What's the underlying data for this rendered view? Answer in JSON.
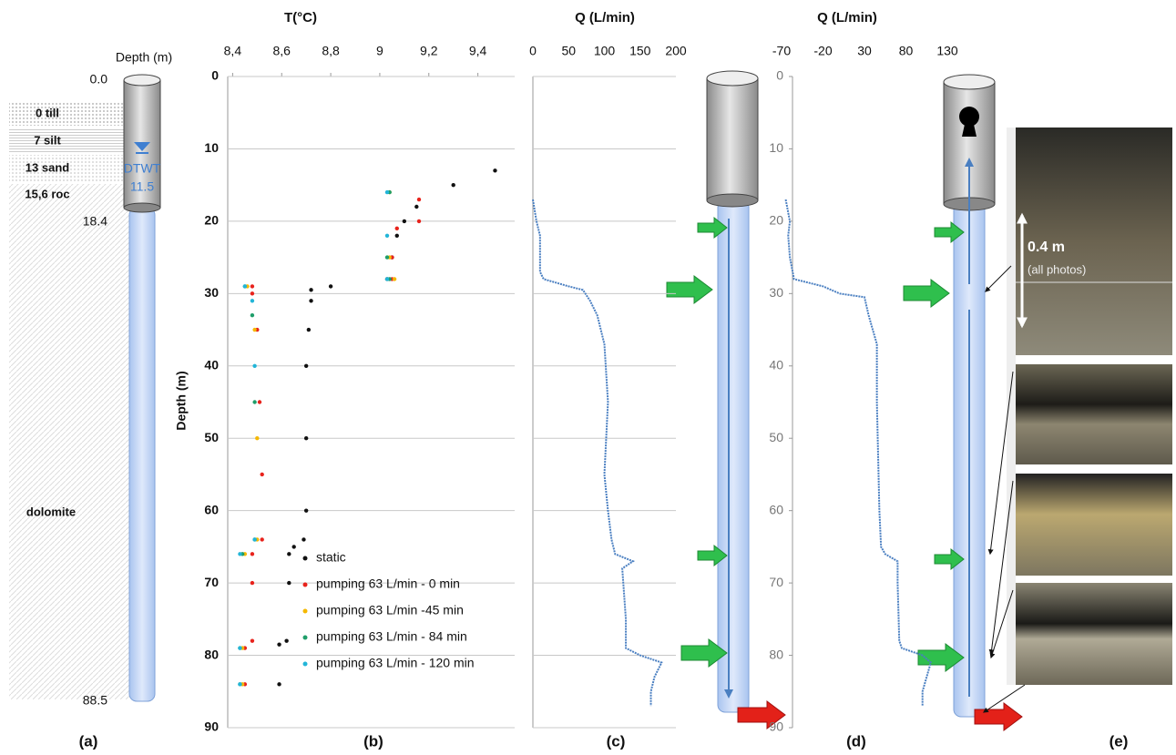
{
  "borehole": {
    "depth_label": "Depth (m)",
    "top_depth": "0.0",
    "casing_depth": "18.4",
    "bottom_depth": "88.5",
    "layers": [
      "0 till",
      "7 silt",
      "13 sand",
      "15,6 roc",
      "dolomite"
    ],
    "water_label": "DTWT",
    "water_depth": "11.5"
  },
  "photos": {
    "scale": "0.4 m",
    "note": "(all photos)"
  },
  "panel_labels": [
    "(a)",
    "(b)",
    "(c)",
    "(d)",
    "(e)"
  ],
  "chart_data": [
    {
      "type": "scatter",
      "title": "T(°C)",
      "y_label": "Depth (m)",
      "xlim": [
        8.38,
        9.55
      ],
      "xticks": [
        {
          "value": 8.4,
          "label": "8,4"
        },
        {
          "value": 8.6,
          "label": "8,6"
        },
        {
          "value": 8.8,
          "label": "8,8"
        },
        9,
        {
          "value": 9.2,
          "label": "9,2"
        },
        {
          "value": 9.4,
          "label": "9,4"
        }
      ],
      "ylim": [
        0,
        90
      ],
      "yticks": [
        0,
        10,
        20,
        30,
        40,
        50,
        60,
        70,
        80,
        90
      ],
      "y_reversed": true,
      "grid": true,
      "legend": "lower right",
      "series": [
        {
          "name": "static",
          "color": "#111111",
          "x": [
            9.47,
            9.3,
            9.15,
            9.1,
            9.07,
            9.05,
            9.03,
            8.8,
            8.72,
            8.72,
            8.71,
            8.7,
            8.7,
            8.7,
            8.69,
            8.65,
            8.63,
            8.63,
            8.62,
            8.59,
            8.59
          ],
          "values": [
            13,
            15,
            18,
            20,
            22,
            25,
            28,
            29,
            29.5,
            31,
            35,
            40,
            50,
            60,
            64,
            65,
            66,
            70,
            78,
            78.5,
            84
          ]
        },
        {
          "name": "pumping 63 L/min - 0 min",
          "color": "#e8231c",
          "x": [
            9.16,
            9.16,
            9.07,
            9.05,
            9.05,
            8.48,
            8.48,
            8.5,
            8.51,
            8.52,
            8.52,
            8.48,
            8.48,
            8.48,
            8.45,
            8.45
          ],
          "values": [
            17,
            20,
            21,
            25,
            28,
            29,
            30,
            35,
            45,
            55,
            64,
            66,
            70,
            78,
            79,
            84
          ]
        },
        {
          "name": "pumping 63 L/min -45 min",
          "color": "#f5b800",
          "x": [
            9.04,
            9.04,
            9.06,
            8.46,
            8.49,
            8.5,
            8.5,
            8.45,
            8.44,
            8.44
          ],
          "values": [
            16,
            25,
            28,
            29,
            35,
            50,
            64,
            66,
            79,
            84
          ]
        },
        {
          "name": "pumping 63 L/min - 84 min",
          "color": "#1f9e6a",
          "x": [
            9.04,
            9.03,
            9.04,
            8.45,
            8.48,
            8.49,
            8.49,
            8.44,
            8.43,
            8.43
          ],
          "values": [
            16,
            25,
            28,
            29,
            33,
            45,
            64,
            66,
            79,
            84
          ]
        },
        {
          "name": "pumping 63 L/min - 120 min",
          "color": "#22b5d8",
          "x": [
            9.03,
            9.03,
            9.03,
            8.45,
            8.48,
            8.49,
            8.49,
            8.43,
            8.43,
            8.43
          ],
          "values": [
            16,
            22,
            28,
            29,
            31,
            40,
            64,
            66,
            79,
            84
          ]
        }
      ]
    },
    {
      "type": "line",
      "title": "Q (L/min)",
      "xlim": [
        0,
        200
      ],
      "xticks": [
        0,
        50,
        100,
        150,
        200
      ],
      "ylim": [
        0,
        90
      ],
      "yticks": [
        0,
        10,
        20,
        30,
        40,
        50,
        60,
        70,
        80,
        90
      ],
      "y_reversed": true,
      "grid": true,
      "ytick_labels": false,
      "series": [
        {
          "color": "#4a7fc1",
          "x": [
            0,
            5,
            10,
            10,
            15,
            50,
            70,
            80,
            90,
            100,
            105,
            100,
            105,
            110,
            115,
            140,
            125,
            130,
            130,
            150,
            180,
            170,
            165,
            165
          ],
          "values": [
            17,
            20,
            22,
            27,
            28,
            29,
            29.5,
            31,
            33,
            37,
            45,
            55,
            60,
            64,
            66,
            67,
            68,
            75,
            79,
            80,
            81,
            83,
            85,
            87
          ]
        }
      ]
    },
    {
      "type": "line",
      "title": "Q (L/min)",
      "xlim": [
        -70,
        130
      ],
      "xticks": [
        -70,
        -20,
        30,
        80,
        130
      ],
      "ylim": [
        0,
        90
      ],
      "yticks": [
        0,
        10,
        20,
        30,
        40,
        50,
        60,
        70,
        80,
        90
      ],
      "y_reversed": true,
      "grid": false,
      "series": [
        {
          "color": "#4a7fc1",
          "x": [
            -65,
            -60,
            -62,
            -60,
            -55,
            -20,
            0,
            30,
            35,
            45,
            45,
            47,
            48,
            50,
            55,
            70,
            70,
            72,
            75,
            100,
            110,
            105,
            100,
            100
          ],
          "values": [
            17,
            20,
            22,
            25,
            28,
            29,
            30,
            30.5,
            33,
            37,
            45,
            55,
            60,
            65,
            66,
            67,
            70,
            78,
            79,
            80,
            81,
            83,
            85,
            87
          ]
        }
      ]
    }
  ]
}
